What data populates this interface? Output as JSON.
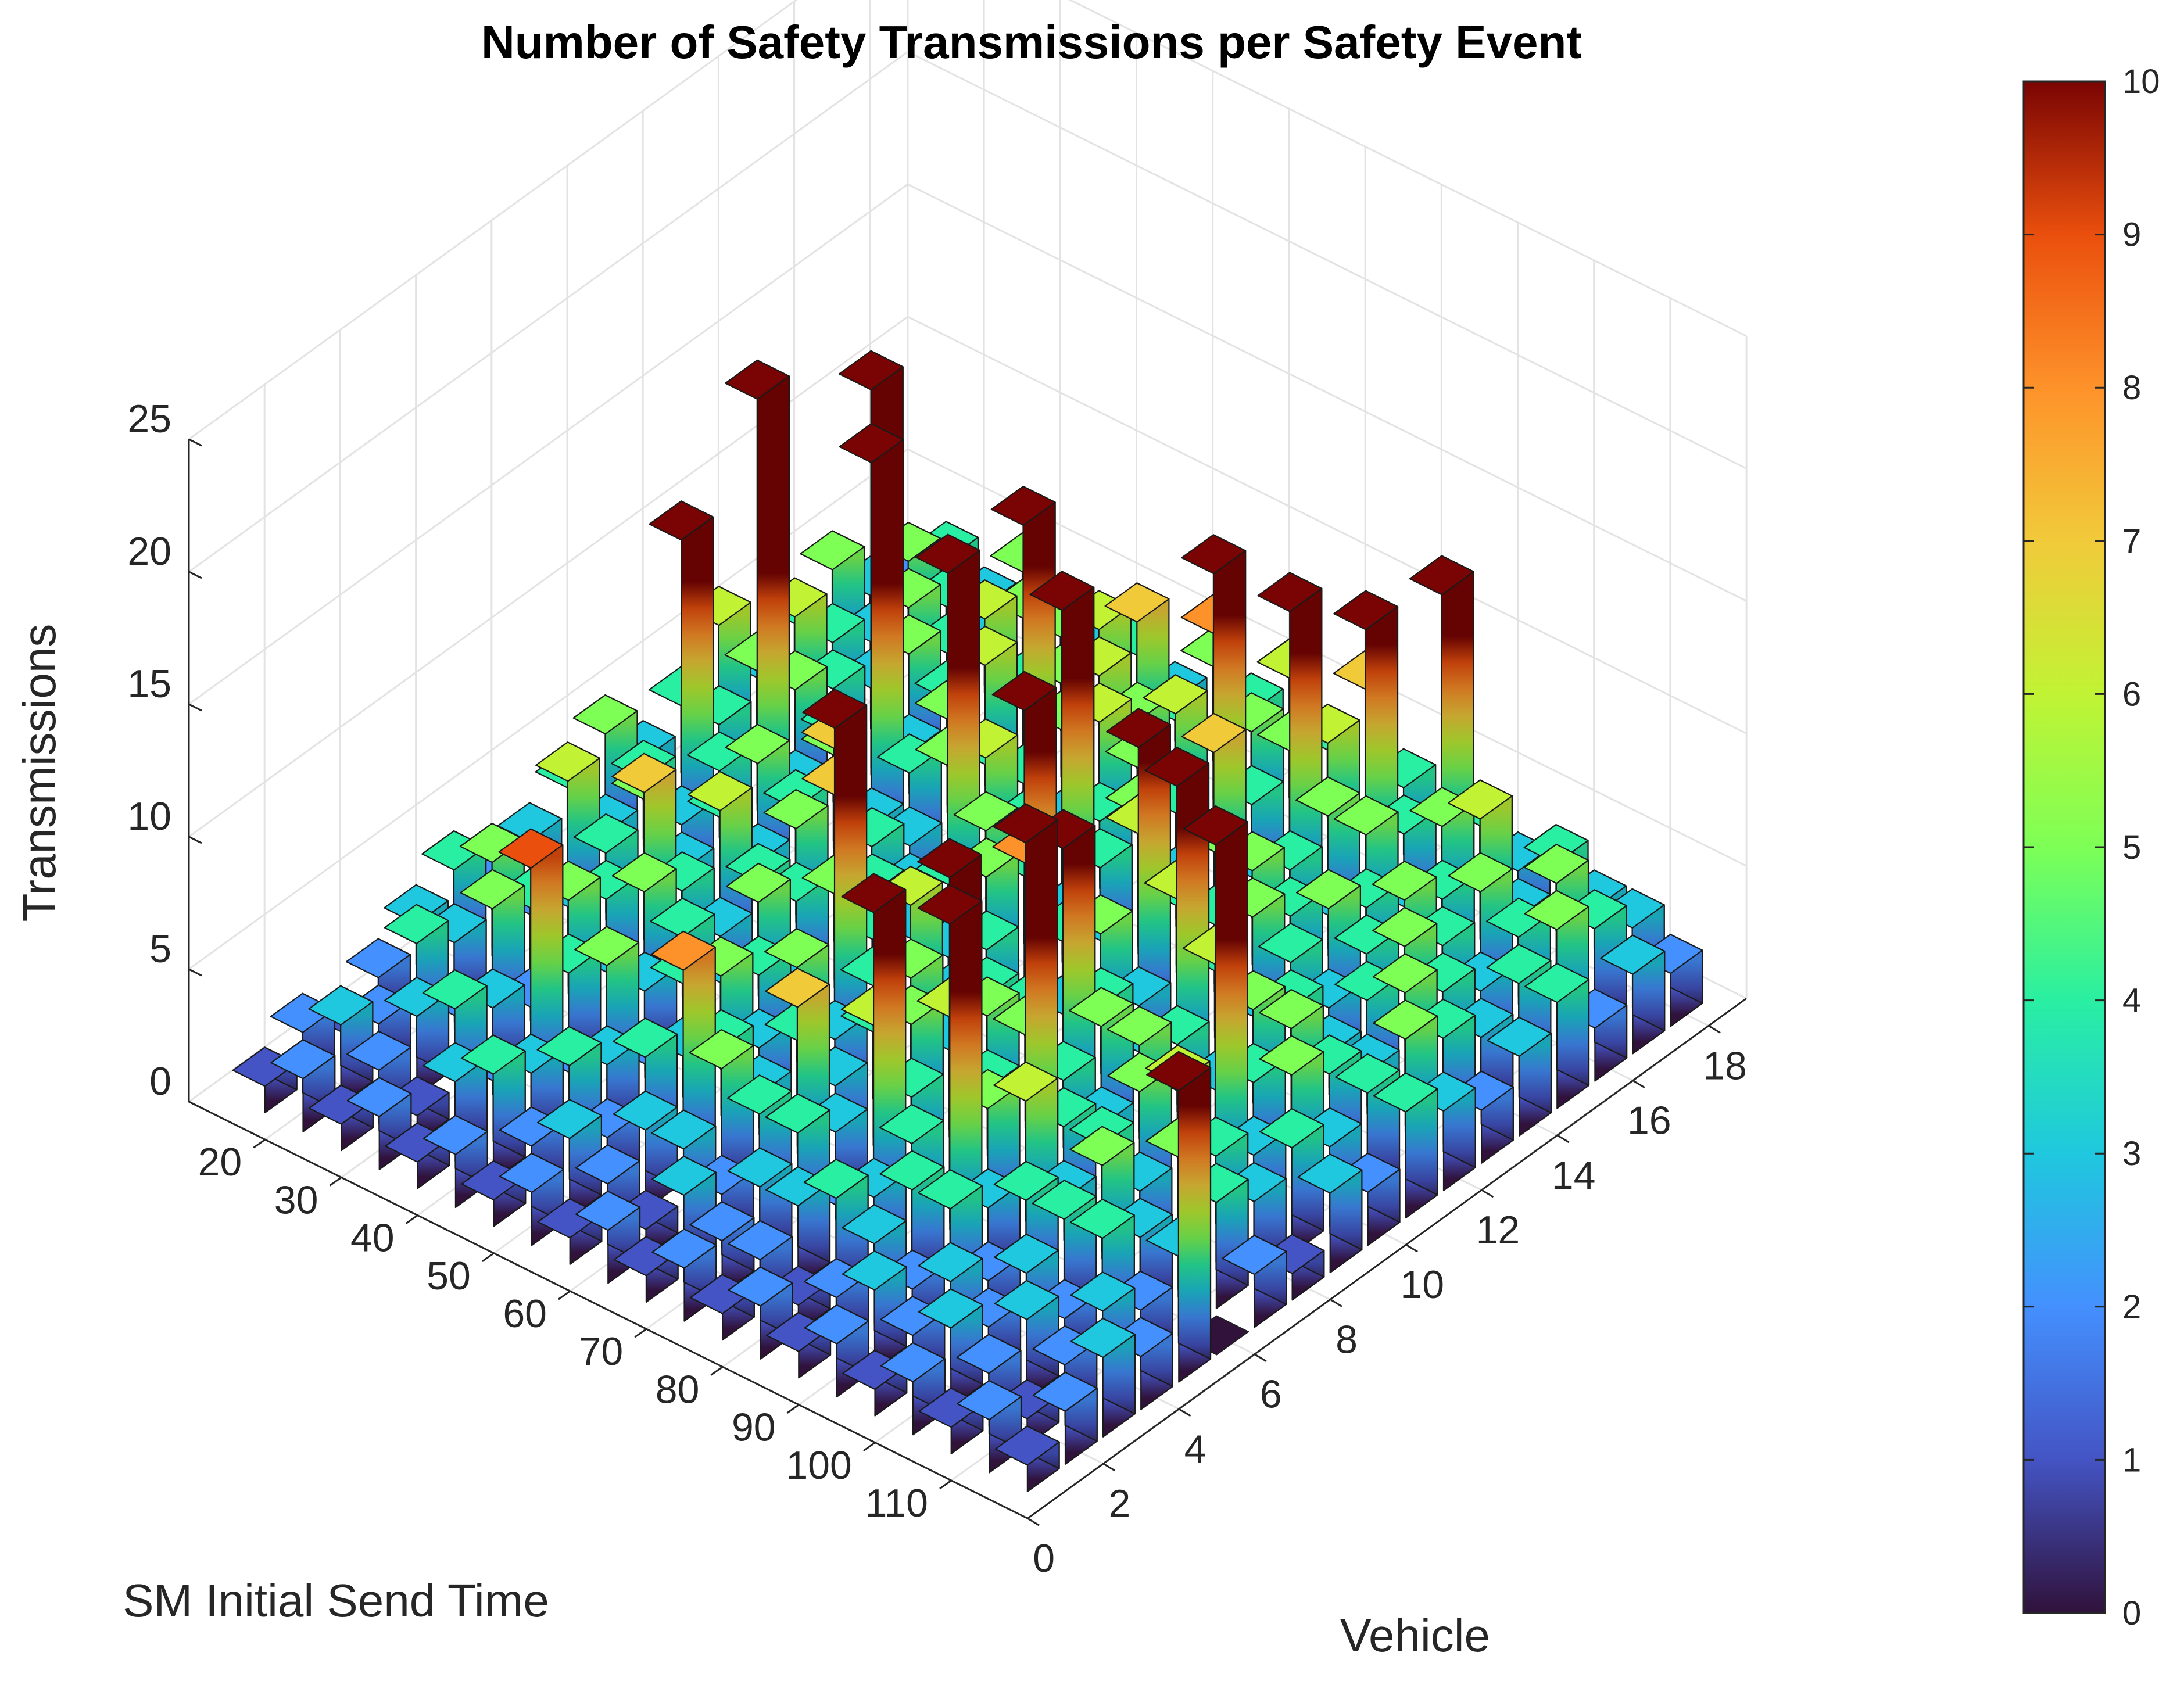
{
  "chart_data": {
    "type": "bar3",
    "title": "Number of Safety Transmissions per Safety Event",
    "zlabel": "Transmissions",
    "xlabel": "SM Initial Send Time",
    "ylabel": "Vehicle",
    "x_ticks": [
      "20",
      "30",
      "40",
      "50",
      "60",
      "70",
      "80",
      "90",
      "100",
      "110"
    ],
    "y_ticks": [
      "0",
      "2",
      "4",
      "6",
      "8",
      "10",
      "12",
      "14",
      "16",
      "18"
    ],
    "z_ticks": [
      "0",
      "5",
      "10",
      "15",
      "20",
      "25"
    ],
    "zlim": [
      0,
      25
    ],
    "colorbar": {
      "ticks": [
        "0",
        "1",
        "2",
        "3",
        "4",
        "5",
        "6",
        "7",
        "8",
        "9",
        "10"
      ],
      "range": [
        0,
        10
      ],
      "colormap": "turbo"
    },
    "grid": true,
    "rows_send_time": [
      15,
      20,
      25,
      30,
      35,
      40,
      45,
      50,
      55,
      60,
      65,
      70,
      75,
      80,
      85,
      90,
      95,
      100,
      105,
      110,
      115
    ],
    "columns_vehicle": [
      1,
      2,
      3,
      4,
      5,
      6,
      7,
      8,
      9,
      10,
      11,
      12,
      13,
      14,
      15,
      16,
      17,
      18
    ],
    "values": [
      [
        1,
        2,
        1,
        2,
        3,
        4,
        2,
        3,
        4,
        5,
        3,
        4,
        6,
        3,
        4,
        5,
        3,
        2
      ],
      [
        2,
        3,
        2,
        4,
        3,
        5,
        2,
        6,
        3,
        4,
        12,
        4,
        5,
        6,
        4,
        3,
        5,
        4
      ],
      [
        1,
        2,
        3,
        2,
        5,
        4,
        3,
        4,
        5,
        3,
        4,
        17,
        5,
        4,
        3,
        5,
        4,
        3
      ],
      [
        2,
        1,
        4,
        3,
        2,
        5,
        4,
        7,
        3,
        4,
        5,
        3,
        4,
        16,
        5,
        4,
        3,
        5
      ],
      [
        1,
        3,
        2,
        9,
        4,
        3,
        5,
        4,
        6,
        3,
        4,
        5,
        15,
        3,
        4,
        6,
        5,
        4
      ],
      [
        2,
        4,
        3,
        2,
        5,
        3,
        4,
        3,
        4,
        5,
        7,
        3,
        4,
        5,
        6,
        4,
        5,
        3
      ],
      [
        1,
        2,
        4,
        3,
        2,
        4,
        3,
        5,
        4,
        7,
        4,
        3,
        5,
        4,
        12,
        5,
        6,
        4
      ],
      [
        2,
        3,
        2,
        4,
        3,
        5,
        4,
        3,
        5,
        4,
        3,
        14,
        6,
        4,
        5,
        6,
        7,
        3
      ],
      [
        1,
        2,
        3,
        8,
        4,
        3,
        5,
        13,
        4,
        3,
        4,
        5,
        4,
        3,
        6,
        5,
        4,
        5
      ],
      [
        2,
        1,
        3,
        5,
        3,
        4,
        3,
        4,
        6,
        3,
        5,
        4,
        13,
        4,
        5,
        6,
        8,
        4
      ],
      [
        1,
        3,
        2,
        4,
        7,
        3,
        4,
        5,
        3,
        4,
        12,
        3,
        4,
        5,
        4,
        12,
        5,
        6
      ],
      [
        2,
        2,
        3,
        4,
        3,
        6,
        5,
        3,
        4,
        8,
        4,
        3,
        6,
        3,
        7,
        4,
        5,
        4
      ],
      [
        1,
        2,
        3,
        2,
        12,
        4,
        6,
        5,
        4,
        3,
        5,
        11,
        4,
        5,
        3,
        12,
        6,
        7
      ],
      [
        2,
        1,
        4,
        3,
        4,
        13,
        4,
        5,
        11,
        4,
        3,
        6,
        4,
        5,
        4,
        5,
        11,
        4
      ],
      [
        1,
        2,
        3,
        4,
        13,
        5,
        14,
        4,
        5,
        3,
        12,
        4,
        5,
        4,
        3,
        5,
        4,
        12
      ],
      [
        2,
        3,
        2,
        4,
        3,
        6,
        4,
        3,
        5,
        4,
        6,
        3,
        4,
        5,
        4,
        3,
        5,
        4
      ],
      [
        1,
        2,
        3,
        2,
        4,
        3,
        4,
        5,
        4,
        3,
        5,
        4,
        3,
        4,
        5,
        4,
        6,
        3
      ],
      [
        2,
        3,
        2,
        3,
        4,
        5,
        3,
        6,
        14,
        4,
        5,
        3,
        4,
        5,
        4,
        5,
        3,
        4
      ],
      [
        1,
        2,
        3,
        2,
        4,
        3,
        5,
        4,
        3,
        5,
        4,
        3,
        5,
        4,
        3,
        4,
        5,
        3
      ],
      [
        2,
        1,
        2,
        3,
        2,
        3,
        4,
        3,
        4,
        3,
        4,
        5,
        4,
        3,
        4,
        5,
        4,
        3
      ],
      [
        1,
        2,
        3,
        2,
        11,
        0,
        2,
        1,
        3,
        2,
        4,
        3,
        2,
        3,
        4,
        2,
        3,
        2
      ]
    ]
  }
}
